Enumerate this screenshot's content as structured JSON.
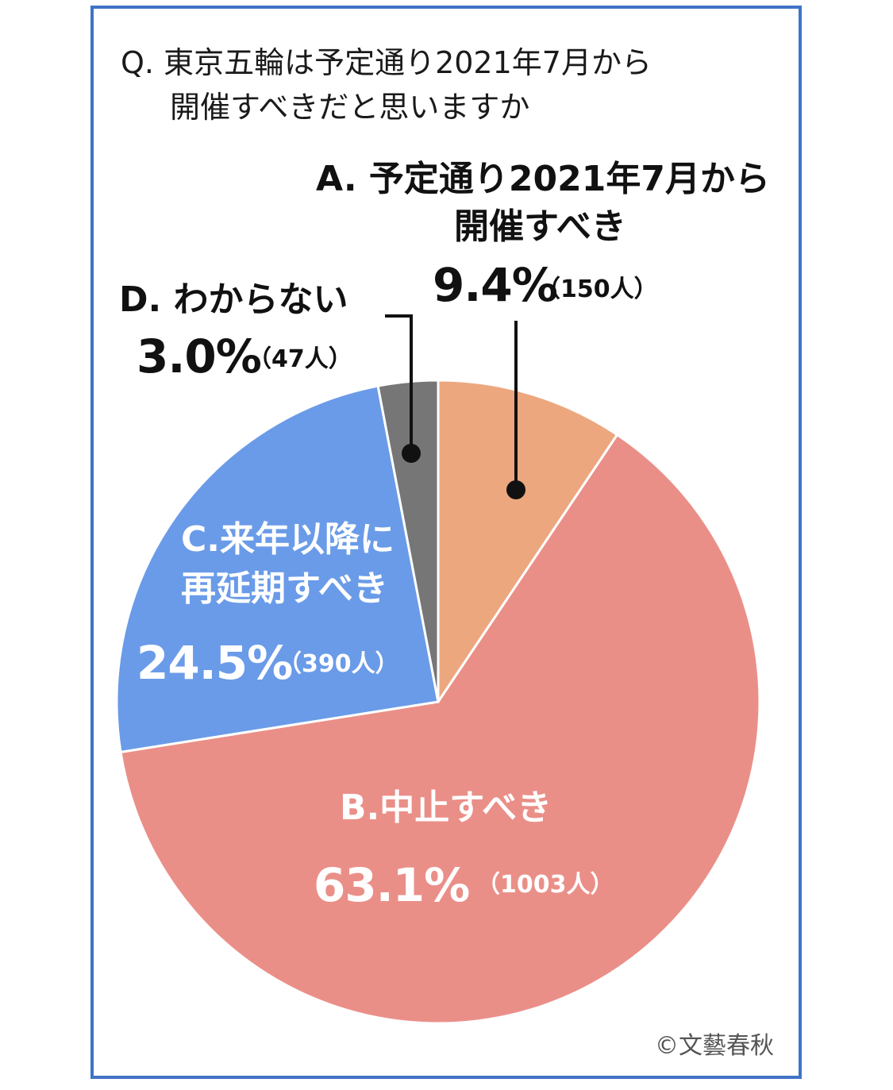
{
  "question": {
    "line1": "Q. 東京五輪は予定通り2021年7月から",
    "line2": "開催すべきだと思いますか"
  },
  "credit": "©文藝春秋",
  "chart_data": {
    "type": "pie",
    "slices": [
      {
        "key": "A",
        "line1": "A. 予定通り2021年7月から",
        "line2": "開催すべき",
        "percent_label": "9.4%",
        "count_label": "（150人）",
        "value": 9.4,
        "count": 150,
        "color": "#eda77f"
      },
      {
        "key": "B",
        "line1": "B.中止すべき",
        "line2": "",
        "percent_label": "63.1%",
        "count_label": "（1003人）",
        "value": 63.1,
        "count": 1003,
        "color": "#ea8f88"
      },
      {
        "key": "C",
        "line1": "C.来年以降に",
        "line2": "再延期すべき",
        "percent_label": "24.5%",
        "count_label": "（390人）",
        "value": 24.5,
        "count": 390,
        "color": "#6a9be8"
      },
      {
        "key": "D",
        "line1": "D. わからない",
        "line2": "",
        "percent_label": "3.0%",
        "count_label": "（47人）",
        "value": 3.0,
        "count": 47,
        "color": "#767676"
      }
    ]
  }
}
